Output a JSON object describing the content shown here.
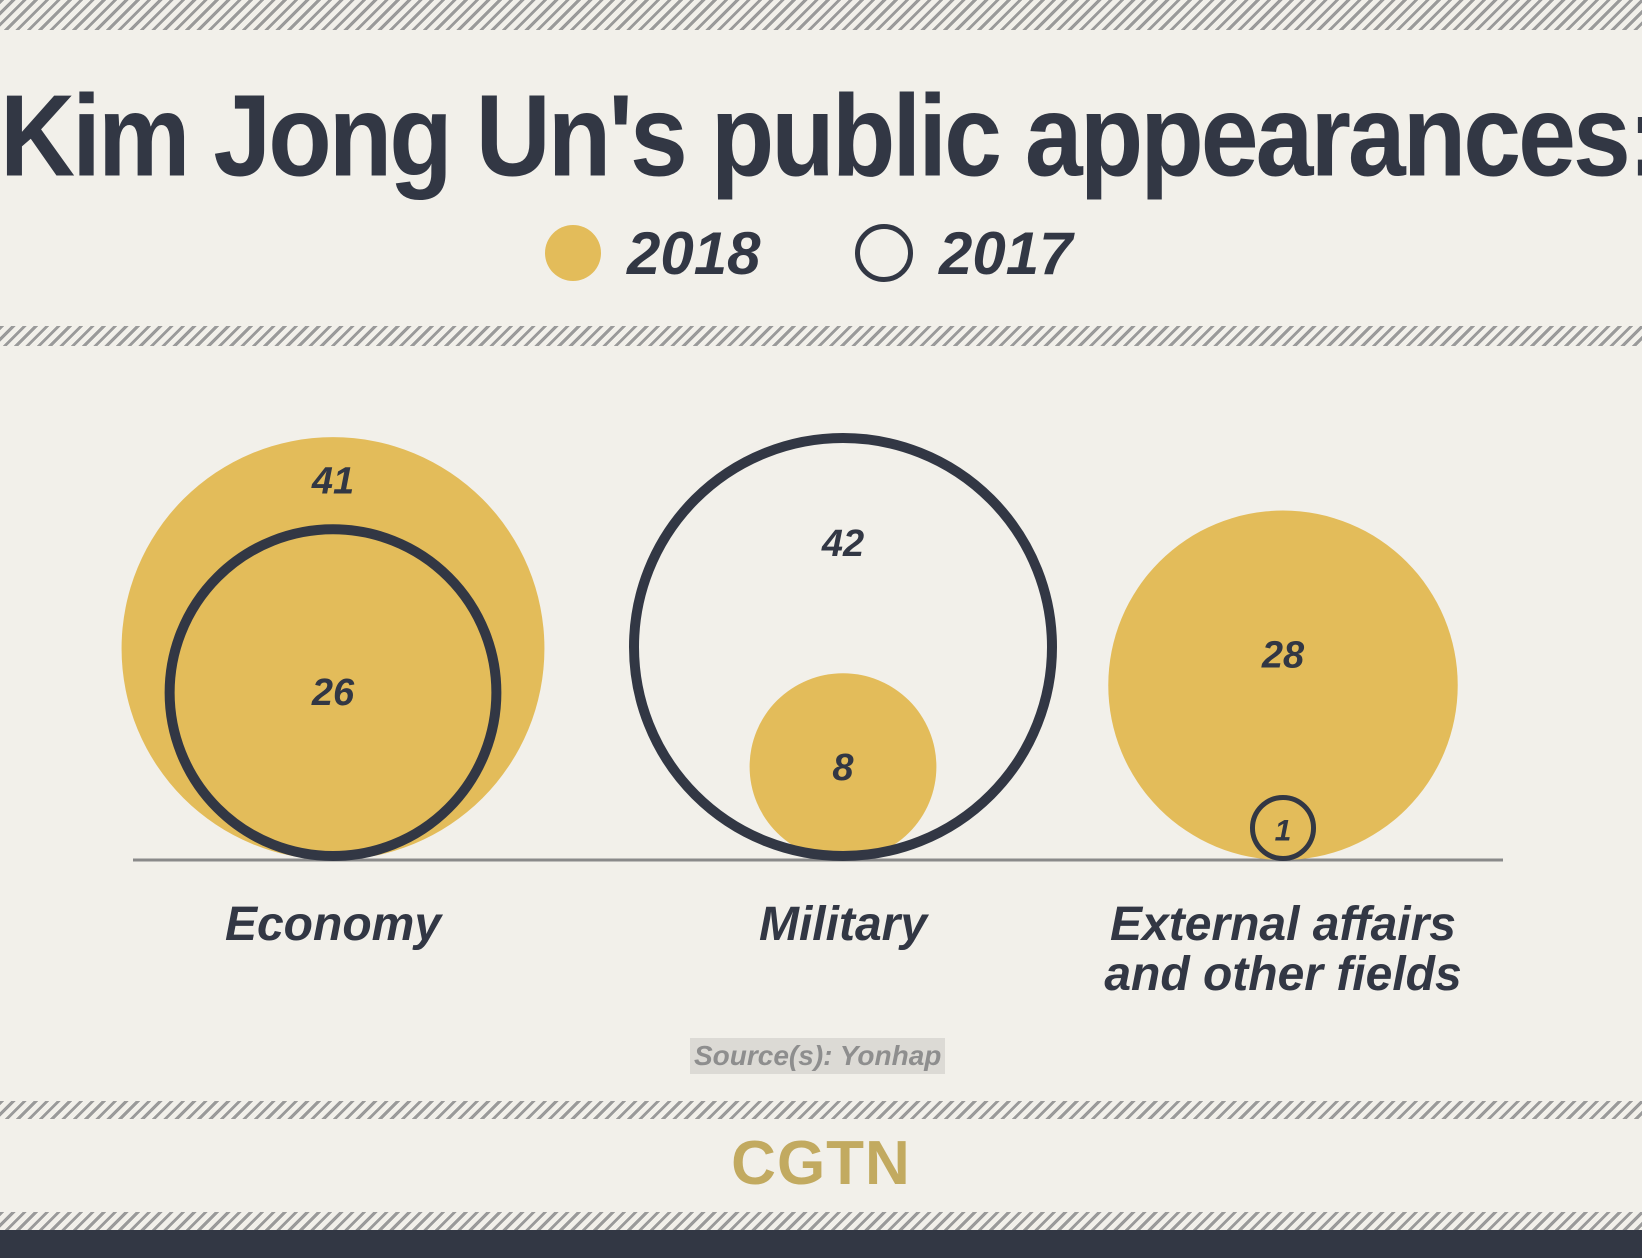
{
  "header": {
    "title": "Kim Jong Un's public appearances:"
  },
  "legend": [
    {
      "label": "2018",
      "style": "filled",
      "color": "#e3bc5a"
    },
    {
      "label": "2017",
      "style": "ring",
      "color": "#323744"
    }
  ],
  "chart_data": {
    "type": "bubble",
    "title": "Kim Jong Un's public appearances:",
    "categories": [
      "Economy",
      "Military",
      "External affairs and other fields"
    ],
    "series": [
      {
        "name": "2018",
        "values": [
          41,
          8,
          28
        ],
        "color": "#e3bc5a"
      },
      {
        "name": "2017",
        "values": [
          26,
          42,
          1
        ],
        "color": "#323744"
      }
    ],
    "legend": "top-center"
  },
  "categories_display": [
    {
      "lines": [
        "Economy"
      ]
    },
    {
      "lines": [
        "Military"
      ]
    },
    {
      "lines": [
        "External affairs",
        "and other fields"
      ]
    }
  ],
  "footer": {
    "source": "Source(s): Yonhap",
    "brand": "CGTN"
  },
  "colors": {
    "background": "#f2f0ea",
    "ink": "#323744",
    "gold": "#e3bc5a",
    "brand": "#c2aa60"
  }
}
